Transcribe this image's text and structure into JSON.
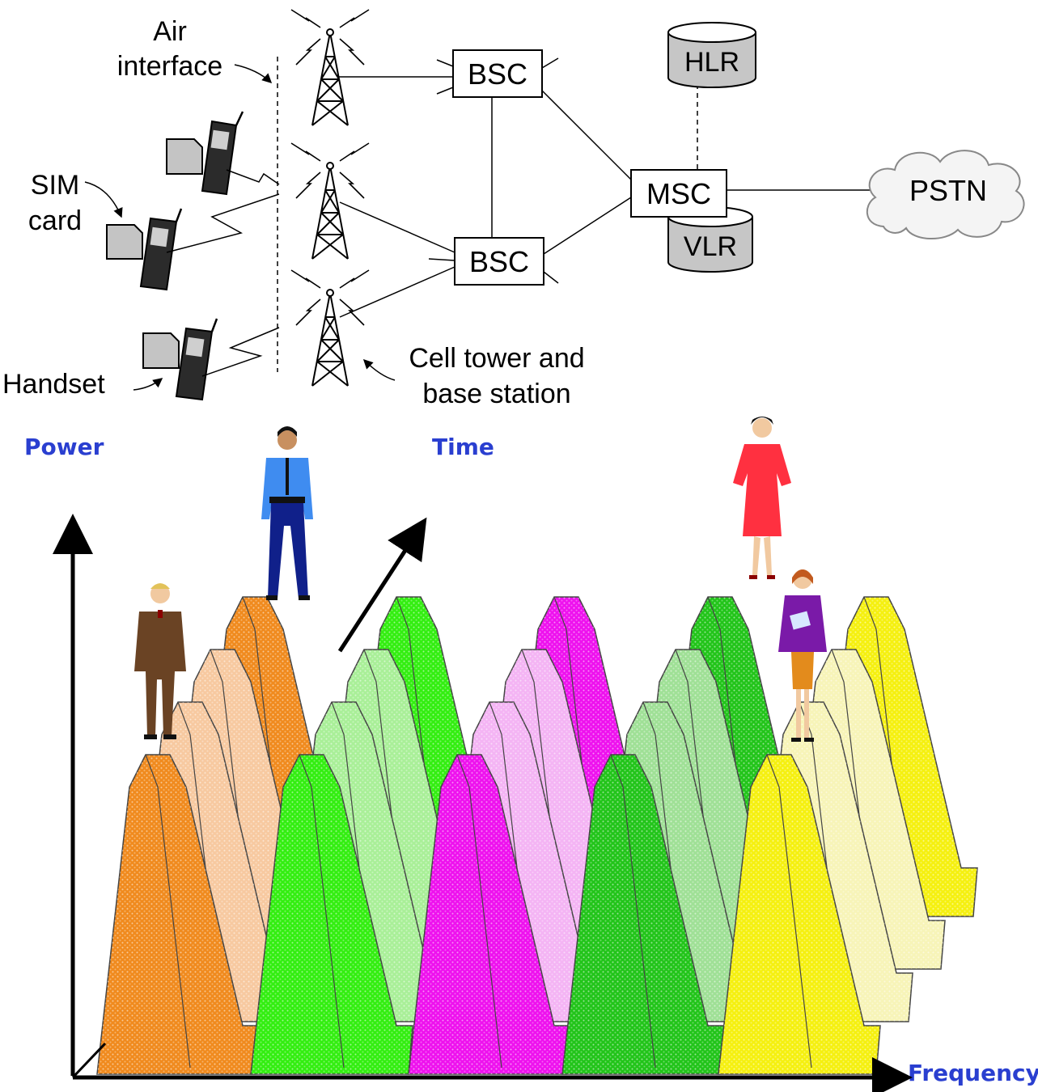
{
  "network": {
    "air_interface_line1": "Air",
    "air_interface_line2": "interface",
    "sim_card_line1": "SIM",
    "sim_card_line2": "card",
    "handset": "Handset",
    "cell_tower_line1": "Cell tower and",
    "cell_tower_line2": "base station",
    "bsc_top": "BSC",
    "bsc_bottom": "BSC",
    "msc": "MSC",
    "hlr": "HLR",
    "vlr": "VLR",
    "pstn": "PSTN"
  },
  "spectrum": {
    "power_label": "Power",
    "time_label": "Time",
    "frequency_label": "Frequency",
    "axis_label_color": "#2a3fd0",
    "channels": [
      {
        "name": "channel-1",
        "color": "#f08a1e",
        "light": "#f7c9a0"
      },
      {
        "name": "channel-2",
        "color": "#33ee11",
        "light": "#a9ef98"
      },
      {
        "name": "channel-3",
        "color": "#ee11ee",
        "light": "#f4b4f4"
      },
      {
        "name": "channel-4",
        "color": "#22c41a",
        "light": "#9fe096"
      },
      {
        "name": "channel-5",
        "color": "#f5f010",
        "light": "#f7f4b8"
      }
    ]
  }
}
